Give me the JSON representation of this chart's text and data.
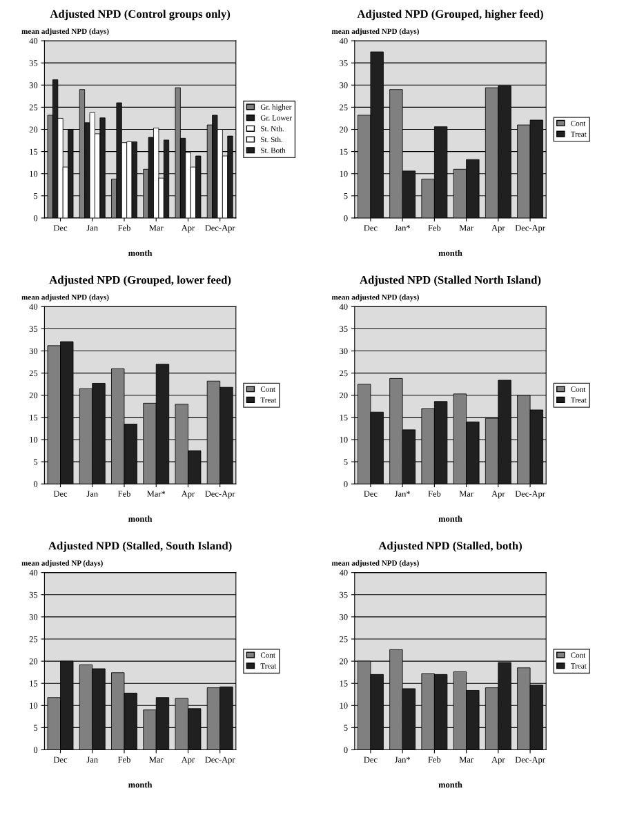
{
  "chart_data": [
    {
      "type": "bar",
      "title": "Adjusted NPD (Control groups only)",
      "xlabel": "month",
      "ylabel": "mean adjusted NPD (days)",
      "categories": [
        "Dec",
        "Jan",
        "Feb",
        "Mar",
        "Apr",
        "Dec-Apr"
      ],
      "ylim": [
        0,
        40
      ],
      "yticks": [
        0,
        5,
        10,
        15,
        20,
        25,
        30,
        35,
        40
      ],
      "grid": "y",
      "legend": "right",
      "series": [
        {
          "name": "Gr. higher",
          "color": "#808080",
          "values": [
            23.2,
            29,
            8.8,
            11,
            29.4,
            21
          ]
        },
        {
          "name": "Gr. Lower",
          "color": "#202020",
          "values": [
            31.2,
            21.5,
            26,
            18.2,
            18,
            23.2
          ]
        },
        {
          "name": "St. Nth.",
          "color": "#ffffff",
          "values": [
            22.5,
            23.8,
            17,
            20.3,
            14.8,
            20
          ]
        },
        {
          "name": "St. Sth.",
          "color": "#ffffff",
          "values": [
            11.5,
            19,
            17.2,
            9,
            11.5,
            14
          ]
        },
        {
          "name": "St. Both",
          "color": "#202020",
          "values": [
            20,
            22.6,
            17.2,
            17.6,
            14,
            18.5
          ]
        }
      ]
    },
    {
      "type": "bar",
      "title": "Adjusted NPD (Grouped, higher feed)",
      "xlabel": "month",
      "ylabel": "mean adjusted NPD (days)",
      "categories": [
        "Dec",
        "Jan*",
        "Feb",
        "Mar",
        "Apr",
        "Dec-Apr"
      ],
      "ylim": [
        0,
        40
      ],
      "yticks": [
        0,
        5,
        10,
        15,
        20,
        25,
        30,
        35,
        40
      ],
      "grid": "y",
      "legend": "right",
      "series": [
        {
          "name": "Cont",
          "color": "#808080",
          "values": [
            23.2,
            29,
            8.8,
            11,
            29.4,
            21
          ]
        },
        {
          "name": "Treat",
          "color": "#202020",
          "values": [
            37.5,
            10.6,
            20.6,
            13.2,
            29.8,
            22.1
          ]
        }
      ]
    },
    {
      "type": "bar",
      "title": "Adjusted NPD (Grouped, lower feed)",
      "xlabel": "month",
      "ylabel": "mean adjusted NPD (days)",
      "categories": [
        "Dec",
        "Jan",
        "Feb",
        "Mar*",
        "Apr",
        "Dec-Apr"
      ],
      "ylim": [
        0,
        40
      ],
      "yticks": [
        0,
        5,
        10,
        15,
        20,
        25,
        30,
        35,
        40
      ],
      "grid": "y",
      "legend": "right",
      "series": [
        {
          "name": "Cont",
          "color": "#808080",
          "values": [
            31.2,
            21.5,
            26,
            18.2,
            18,
            23.2
          ]
        },
        {
          "name": "Treat",
          "color": "#202020",
          "values": [
            32.1,
            22.7,
            13.5,
            27,
            7.5,
            21.8
          ]
        }
      ]
    },
    {
      "type": "bar",
      "title": "Adjusted NPD (Stalled North Island)",
      "xlabel": "month",
      "ylabel": "mean adjusted NPD (days)",
      "categories": [
        "Dec",
        "Jan*",
        "Feb",
        "Mar",
        "Apr",
        "Dec-Apr"
      ],
      "ylim": [
        0,
        40
      ],
      "yticks": [
        0,
        5,
        10,
        15,
        20,
        25,
        30,
        35,
        40
      ],
      "grid": "y",
      "legend": "right",
      "series": [
        {
          "name": "Cont",
          "color": "#808080",
          "values": [
            22.5,
            23.8,
            17,
            20.3,
            14.8,
            20
          ]
        },
        {
          "name": "Treat",
          "color": "#202020",
          "values": [
            16.2,
            12.2,
            18.6,
            14,
            23.4,
            16.7
          ]
        }
      ]
    },
    {
      "type": "bar",
      "title": "Adjusted NPD (Stalled, South Island)",
      "xlabel": "month",
      "ylabel": "mean adjusted NP (days)",
      "categories": [
        "Dec",
        "Jan",
        "Feb",
        "Mar",
        "Apr",
        "Dec-Apr"
      ],
      "ylim": [
        0,
        40
      ],
      "yticks": [
        0,
        5,
        10,
        15,
        20,
        25,
        30,
        35,
        40
      ],
      "grid": "y",
      "legend": "right",
      "series": [
        {
          "name": "Cont",
          "color": "#808080",
          "values": [
            11.8,
            19.2,
            17.4,
            9,
            11.6,
            14
          ]
        },
        {
          "name": "Treat",
          "color": "#202020",
          "values": [
            20,
            18.3,
            12.8,
            11.8,
            9.3,
            14.2
          ]
        }
      ]
    },
    {
      "type": "bar",
      "title": "Adjusted NPD (Stalled, both)",
      "xlabel": "month",
      "ylabel": "mean adjusted NPD (days)",
      "categories": [
        "Dec",
        "Jan*",
        "Feb",
        "Mar",
        "Apr",
        "Dec-Apr"
      ],
      "ylim": [
        0,
        40
      ],
      "yticks": [
        0,
        5,
        10,
        15,
        20,
        25,
        30,
        35,
        40
      ],
      "grid": "y",
      "legend": "right",
      "series": [
        {
          "name": "Cont",
          "color": "#808080",
          "values": [
            20,
            22.6,
            17.2,
            17.6,
            14,
            18.5
          ]
        },
        {
          "name": "Treat",
          "color": "#202020",
          "values": [
            17,
            13.8,
            17,
            13.4,
            19.7,
            14.6
          ]
        }
      ]
    }
  ]
}
